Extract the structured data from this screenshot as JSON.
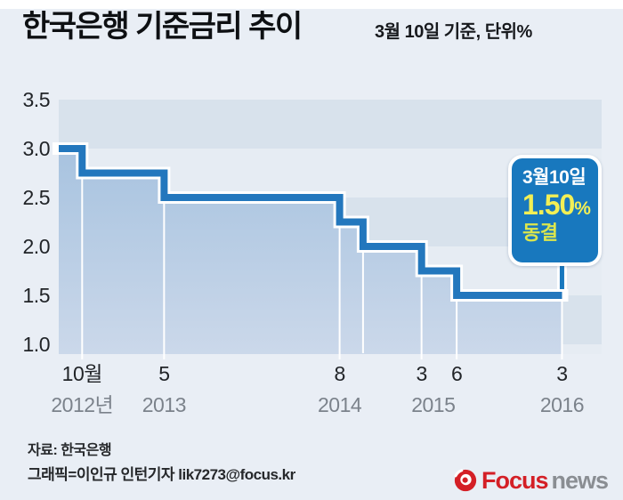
{
  "header": {
    "title": "한국은행 기준금리 추이",
    "subtitle": "3월 10일 기준, 단위%"
  },
  "chart_data": {
    "type": "area",
    "subtype": "step",
    "title": "한국은행 기준금리 추이",
    "subtitle": "3월 10일 기준, 단위%",
    "unit": "%",
    "ylim": [
      1.0,
      3.5
    ],
    "yticks": [
      3.5,
      3.0,
      2.5,
      2.0,
      1.5,
      1.0
    ],
    "grid": "horizontal-bands",
    "legend": "none",
    "steps": [
      {
        "date": "2012-08",
        "value": 3.0
      },
      {
        "date": "2012-10",
        "value": 2.75
      },
      {
        "date": "2013-05",
        "value": 2.5
      },
      {
        "date": "2014-08",
        "value": 2.25
      },
      {
        "date": "2014-10",
        "value": 2.0
      },
      {
        "date": "2015-03",
        "value": 1.75
      },
      {
        "date": "2015-06",
        "value": 1.5
      },
      {
        "date": "2016-03",
        "value": 1.5
      }
    ],
    "x_ticks": [
      {
        "date": "2012-10",
        "label": "10월"
      },
      {
        "date": "2013-05",
        "label": "5"
      },
      {
        "date": "2014-08",
        "label": "8"
      },
      {
        "date": "2015-03",
        "label": "3"
      },
      {
        "date": "2015-06",
        "label": "6"
      },
      {
        "date": "2016-03",
        "label": "3"
      }
    ],
    "year_labels": [
      {
        "anchor": "2012-10",
        "label": "2012년"
      },
      {
        "anchor": "2013-05",
        "label": "2013"
      },
      {
        "anchor": "2014-08",
        "label": "2014"
      },
      {
        "anchor": "2015-04",
        "label": "2015"
      },
      {
        "anchor": "2016-03",
        "label": "2016"
      }
    ],
    "callout": {
      "date_label": "3월10일",
      "rate_label": "1.50",
      "unit": "%",
      "status_label": "동결",
      "anchor_date": "2016-03"
    },
    "colors": {
      "line": "#2377bd",
      "area_top": "#9fbedd",
      "area_bottom": "#cbd8ea",
      "band_dark": "#d8e2ec",
      "band_light": "#e6ecf3",
      "callout_bg": "#1878be",
      "callout_date": "#ffffff",
      "callout_rate": "#f2ef55",
      "callout_status": "#dce64d"
    }
  },
  "footer": {
    "source": "자료: 한국은행",
    "credit": "그래픽=이인규 인턴기자 lik7273@focus.kr"
  },
  "logo": {
    "brand": "Focus",
    "suffix": "news",
    "brand_color": "#d41f26",
    "suffix_color": "#8a8e93"
  }
}
